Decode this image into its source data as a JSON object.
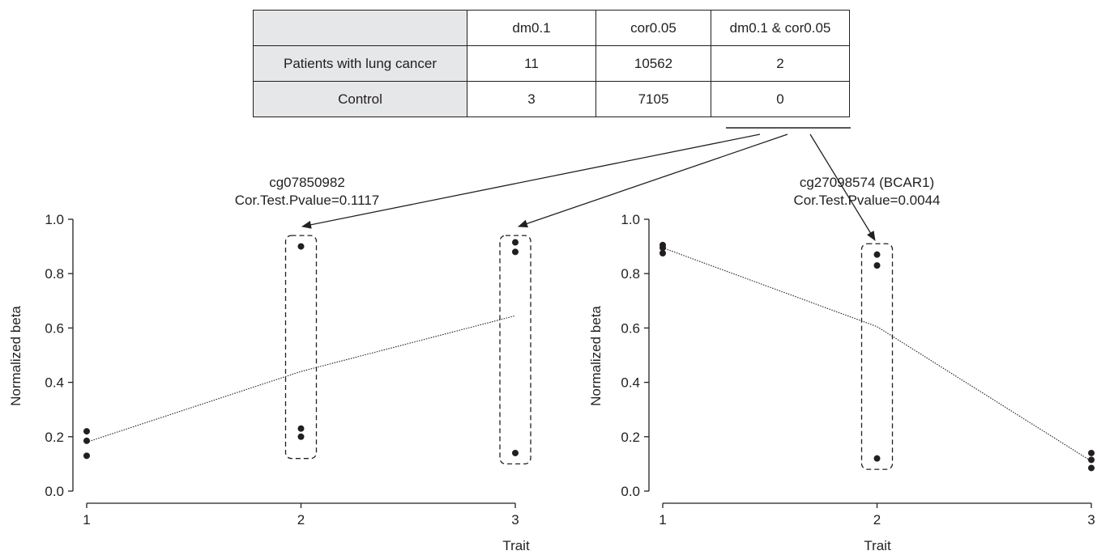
{
  "table": {
    "corner": "",
    "headers": [
      "dm0.1",
      "cor0.05",
      "dm0.1 & cor0.05"
    ],
    "rows": [
      {
        "label": "Patients with lung cancer",
        "values": [
          "11",
          "10562",
          "2"
        ]
      },
      {
        "label": "Control",
        "values": [
          "3",
          "7105",
          "0"
        ]
      }
    ]
  },
  "chart_data": [
    {
      "type": "scatter",
      "title": "cg07850982",
      "subtitle": "Cor.Test.Pvalue=0.1117",
      "xlabel": "Trait",
      "ylabel": "Normalized beta",
      "xticks": [
        "1",
        "2",
        "3"
      ],
      "yticks": [
        "0.0",
        "0.2",
        "0.4",
        "0.6",
        "0.8",
        "1.0"
      ],
      "xlim": [
        1,
        3
      ],
      "ylim": [
        0,
        1
      ],
      "grid": false,
      "points": [
        {
          "x": 1,
          "y": 0.22
        },
        {
          "x": 1,
          "y": 0.185
        },
        {
          "x": 1,
          "y": 0.13
        },
        {
          "x": 2,
          "y": 0.9
        },
        {
          "x": 2,
          "y": 0.23
        },
        {
          "x": 2,
          "y": 0.2
        },
        {
          "x": 3,
          "y": 0.915
        },
        {
          "x": 3,
          "y": 0.88
        },
        {
          "x": 3,
          "y": 0.14
        }
      ],
      "trend_line": [
        {
          "x": 1,
          "y": 0.18
        },
        {
          "x": 2,
          "y": 0.44
        },
        {
          "x": 3,
          "y": 0.645
        }
      ],
      "highlight_boxes": [
        {
          "x": 2,
          "y_min": 0.12,
          "y_max": 0.94
        },
        {
          "x": 3,
          "y_min": 0.1,
          "y_max": 0.94
        }
      ]
    },
    {
      "type": "scatter",
      "title": "cg27098574 (BCAR1)",
      "subtitle": "Cor.Test.Pvalue=0.0044",
      "xlabel": "Trait",
      "ylabel": "Normalized beta",
      "xticks": [
        "1",
        "2",
        "3"
      ],
      "yticks": [
        "0.0",
        "0.2",
        "0.4",
        "0.6",
        "0.8",
        "1.0"
      ],
      "xlim": [
        1,
        3
      ],
      "ylim": [
        0,
        1
      ],
      "grid": false,
      "points": [
        {
          "x": 1,
          "y": 0.905
        },
        {
          "x": 1,
          "y": 0.895
        },
        {
          "x": 1,
          "y": 0.875
        },
        {
          "x": 2,
          "y": 0.87
        },
        {
          "x": 2,
          "y": 0.83
        },
        {
          "x": 2,
          "y": 0.12
        },
        {
          "x": 3,
          "y": 0.14
        },
        {
          "x": 3,
          "y": 0.115
        },
        {
          "x": 3,
          "y": 0.085
        }
      ],
      "trend_line": [
        {
          "x": 1,
          "y": 0.895
        },
        {
          "x": 2,
          "y": 0.605
        },
        {
          "x": 3,
          "y": 0.11
        }
      ],
      "highlight_boxes": [
        {
          "x": 2,
          "y_min": 0.08,
          "y_max": 0.91
        }
      ]
    }
  ]
}
